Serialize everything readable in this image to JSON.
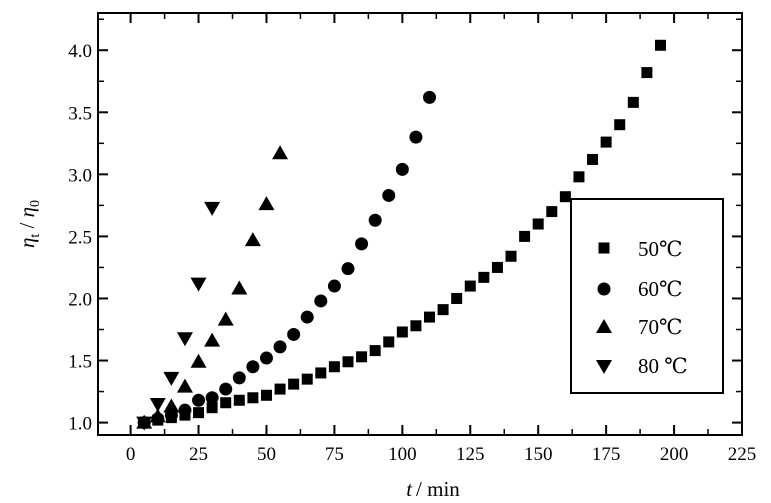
{
  "chart_data": {
    "type": "scatter",
    "xlabel_var": "t",
    "xlabel_unit": "/ min",
    "ylabel_var": "η",
    "ylabel_sub_t": "t",
    "ylabel_slash": " / ",
    "ylabel_sub_0": "0",
    "xlim": [
      -12,
      225
    ],
    "ylim": [
      0.9,
      4.3
    ],
    "xticks": [
      "0",
      "25",
      "50",
      "75",
      "100",
      "125",
      "150",
      "175",
      "200",
      "225"
    ],
    "yticks": [
      "1.0",
      "1.5",
      "2.0",
      "2.5",
      "3.0",
      "3.5",
      "4.0"
    ],
    "grid": false,
    "legend_position": "right",
    "series": [
      {
        "name": "50℃",
        "marker": "square",
        "points": [
          [
            5,
            1.0
          ],
          [
            10,
            1.02
          ],
          [
            15,
            1.04
          ],
          [
            20,
            1.06
          ],
          [
            25,
            1.08
          ],
          [
            30,
            1.12
          ],
          [
            35,
            1.16
          ],
          [
            40,
            1.18
          ],
          [
            45,
            1.2
          ],
          [
            50,
            1.22
          ],
          [
            55,
            1.27
          ],
          [
            60,
            1.31
          ],
          [
            65,
            1.35
          ],
          [
            70,
            1.4
          ],
          [
            75,
            1.45
          ],
          [
            80,
            1.49
          ],
          [
            85,
            1.53
          ],
          [
            90,
            1.58
          ],
          [
            95,
            1.65
          ],
          [
            100,
            1.73
          ],
          [
            105,
            1.78
          ],
          [
            110,
            1.85
          ],
          [
            115,
            1.91
          ],
          [
            120,
            2.0
          ],
          [
            125,
            2.1
          ],
          [
            130,
            2.17
          ],
          [
            135,
            2.25
          ],
          [
            140,
            2.34
          ],
          [
            145,
            2.5
          ],
          [
            150,
            2.6
          ],
          [
            155,
            2.7
          ],
          [
            160,
            2.82
          ],
          [
            165,
            2.98
          ],
          [
            170,
            3.12
          ],
          [
            175,
            3.26
          ],
          [
            180,
            3.4
          ],
          [
            185,
            3.58
          ],
          [
            190,
            3.82
          ],
          [
            195,
            4.04
          ]
        ]
      },
      {
        "name": "60℃",
        "marker": "circle",
        "points": [
          [
            5,
            1.0
          ],
          [
            10,
            1.03
          ],
          [
            15,
            1.06
          ],
          [
            20,
            1.1
          ],
          [
            25,
            1.18
          ],
          [
            30,
            1.2
          ],
          [
            35,
            1.27
          ],
          [
            40,
            1.36
          ],
          [
            45,
            1.45
          ],
          [
            50,
            1.52
          ],
          [
            55,
            1.61
          ],
          [
            60,
            1.71
          ],
          [
            65,
            1.85
          ],
          [
            70,
            1.98
          ],
          [
            75,
            2.1
          ],
          [
            80,
            2.24
          ],
          [
            85,
            2.44
          ],
          [
            90,
            2.63
          ],
          [
            95,
            2.83
          ],
          [
            100,
            3.04
          ],
          [
            105,
            3.3
          ],
          [
            110,
            3.62
          ]
        ]
      },
      {
        "name": "70℃",
        "marker": "triangle-up",
        "points": [
          [
            5,
            1.0
          ],
          [
            10,
            1.05
          ],
          [
            15,
            1.13
          ],
          [
            20,
            1.29
          ],
          [
            25,
            1.49
          ],
          [
            30,
            1.66
          ],
          [
            35,
            1.83
          ],
          [
            40,
            2.08
          ],
          [
            45,
            2.47
          ],
          [
            50,
            2.76
          ],
          [
            55,
            3.17
          ]
        ]
      },
      {
        "name": "80 ℃",
        "marker": "triangle-down",
        "points": [
          [
            5,
            1.0
          ],
          [
            10,
            1.15
          ],
          [
            15,
            1.36
          ],
          [
            20,
            1.68
          ],
          [
            25,
            2.12
          ],
          [
            30,
            2.73
          ]
        ]
      }
    ]
  }
}
